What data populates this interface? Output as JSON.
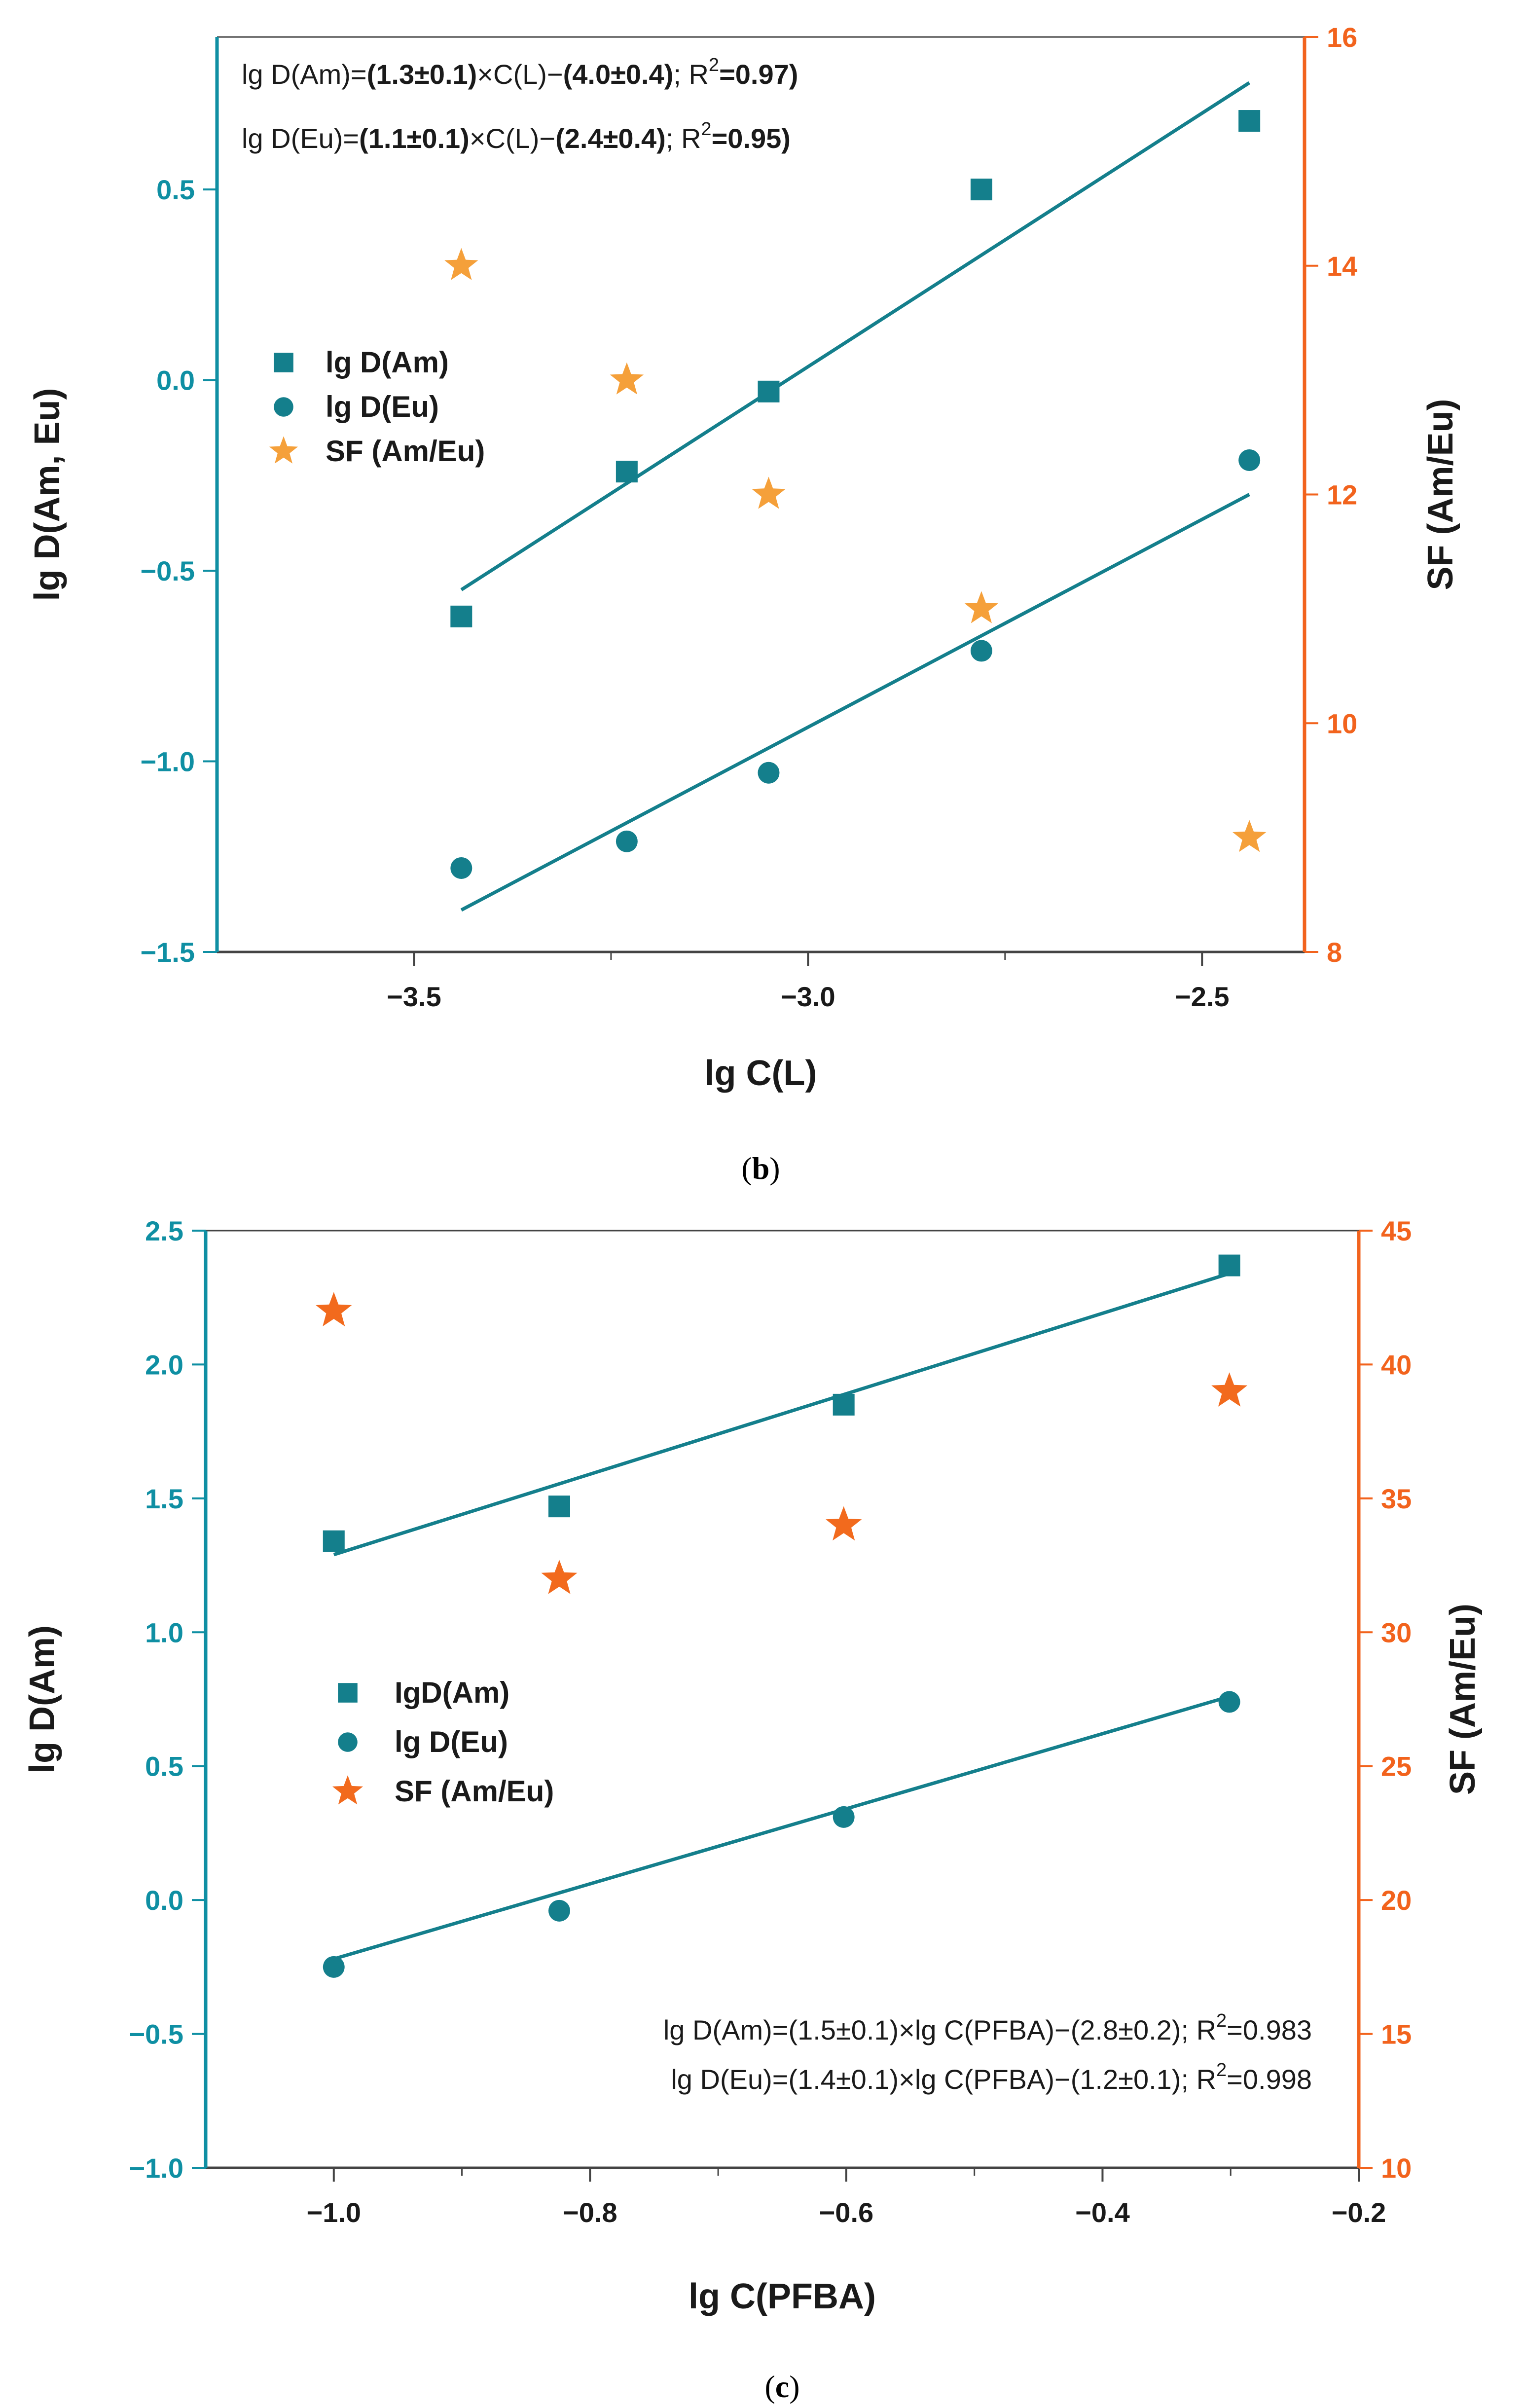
{
  "colors": {
    "teal": "#147f8c",
    "axis_teal": "#0f8fa3",
    "orange_b": "#f5a03a",
    "orange_c": "#f26a1d",
    "axis_orange": "#f2631d"
  },
  "chart_data": [
    {
      "type": "scatter",
      "panel_label_parts": [
        "(",
        "b",
        ")"
      ],
      "xlabel": "lg C(L)",
      "ylabel": "lg D(Am, Eu)",
      "y2label": "SF (Am/Eu)",
      "xlim": [
        -3.75,
        -2.37
      ],
      "ylim": [
        -1.5,
        0.9
      ],
      "y2lim": [
        8,
        16
      ],
      "xticks": [
        -3.5,
        -3.0,
        -2.5
      ],
      "xtick_labels": [
        "−3.5",
        "−3.0",
        "−2.5"
      ],
      "yticks": [
        0.5,
        0.0,
        -0.5,
        -1.0,
        -1.5
      ],
      "ytick_labels": [
        "0.5",
        "0.0",
        "−0.5",
        "−1.0",
        "−1.5"
      ],
      "y2ticks": [
        16,
        14,
        12,
        10,
        8
      ],
      "y2tick_labels": [
        "16",
        "14",
        "12",
        "10",
        "8"
      ],
      "series": [
        {
          "name": "lg D(Am)",
          "marker": "square",
          "axis": "left",
          "x": [
            -3.44,
            -3.23,
            -3.05,
            -2.78,
            -2.44
          ],
          "y": [
            -0.62,
            -0.24,
            -0.03,
            0.5,
            0.68
          ],
          "fit": {
            "x": [
              -3.44,
              -2.44
            ],
            "y": [
              -0.55,
              0.78
            ]
          }
        },
        {
          "name": "lg D(Eu)",
          "marker": "circle",
          "axis": "left",
          "x": [
            -3.44,
            -3.23,
            -3.05,
            -2.78,
            -2.44
          ],
          "y": [
            -1.28,
            -1.21,
            -1.03,
            -0.71,
            -0.21
          ],
          "fit": {
            "x": [
              -3.44,
              -2.44
            ],
            "y": [
              -1.39,
              -0.3
            ]
          }
        },
        {
          "name": "SF (Am/Eu)",
          "marker": "star",
          "axis": "right",
          "x": [
            -3.44,
            -3.23,
            -3.05,
            -2.78,
            -2.44
          ],
          "y": [
            14.0,
            13.0,
            12.0,
            11.0,
            9.0
          ]
        }
      ],
      "legend_labels": [
        "lg D(Am)",
        "lg D(Eu)",
        "SF (Am/Eu)"
      ],
      "legend_position": "middle-left",
      "equations": [
        {
          "lhs": "lg D(Am)=",
          "a": "(1.3±0.1)",
          "mid": "×C(L)−",
          "b": "(4.0±0.4)",
          "r2_pre": "; R",
          "r2_sup": "2",
          "r2_post": "=0.97)"
        },
        {
          "lhs": "lg D(Eu)=",
          "a": "(1.1±0.1)",
          "mid": "×C(L)−",
          "b": "(2.4±0.4)",
          "r2_pre": "; R",
          "r2_sup": "2",
          "r2_post": "=0.95)"
        }
      ],
      "equations_position": "top-left"
    },
    {
      "type": "scatter",
      "panel_label_parts": [
        "(",
        "c",
        ")"
      ],
      "xlabel": "lg C(PFBA)",
      "ylabel": "lg D(Am)",
      "y2label": "SF (Am/Eu)",
      "xlim": [
        -1.1,
        -0.2
      ],
      "ylim": [
        -1.0,
        2.5
      ],
      "y2lim": [
        10,
        45
      ],
      "xticks": [
        -1.0,
        -0.8,
        -0.6,
        -0.4,
        -0.2
      ],
      "xtick_labels": [
        "−1.0",
        "−0.8",
        "−0.6",
        "−0.4",
        "−0.2"
      ],
      "yticks": [
        2.5,
        2.0,
        1.5,
        1.0,
        0.5,
        0.0,
        -0.5,
        -1.0
      ],
      "ytick_labels": [
        "2.5",
        "2.0",
        "1.5",
        "1.0",
        "0.5",
        "0.0",
        "−0.5",
        "−1.0"
      ],
      "y2ticks": [
        45,
        40,
        35,
        30,
        25,
        20,
        15,
        10
      ],
      "y2tick_labels": [
        "45",
        "40",
        "35",
        "30",
        "25",
        "20",
        "15",
        "10"
      ],
      "series": [
        {
          "name": "IgD(Am)",
          "marker": "square",
          "axis": "left",
          "x": [
            -1.0,
            -0.824,
            -0.602,
            -0.301
          ],
          "y": [
            1.34,
            1.47,
            1.85,
            2.37
          ],
          "fit": {
            "x": [
              -1.0,
              -0.301
            ],
            "y": [
              1.29,
              2.34
            ]
          }
        },
        {
          "name": "lg D(Eu)",
          "marker": "circle",
          "axis": "left",
          "x": [
            -1.0,
            -0.824,
            -0.602,
            -0.301
          ],
          "y": [
            -0.25,
            -0.04,
            0.31,
            0.74
          ],
          "fit": {
            "x": [
              -1.0,
              -0.301
            ],
            "y": [
              -0.22,
              0.76
            ]
          }
        },
        {
          "name": "SF (Am/Eu)",
          "marker": "star",
          "axis": "right",
          "x": [
            -1.0,
            -0.824,
            -0.602,
            -0.301
          ],
          "y": [
            42.0,
            32.0,
            34.0,
            39.0
          ]
        }
      ],
      "legend_labels": [
        "IgD(Am)",
        "lg D(Eu)",
        "SF (Am/Eu)"
      ],
      "legend_position": "middle-left",
      "equations": [
        {
          "pre": "lg D(Am)=(1.5±0.1)×lg C(PFBA)−(2.8±0.2); R",
          "sup": "2",
          "post": "=0.983"
        },
        {
          "pre": "lg D(Eu)=(1.4±0.1)×lg C(PFBA)−(1.2±0.1); R",
          "sup": "2",
          "post": "=0.998"
        }
      ],
      "equations_position": "bottom-right"
    }
  ]
}
